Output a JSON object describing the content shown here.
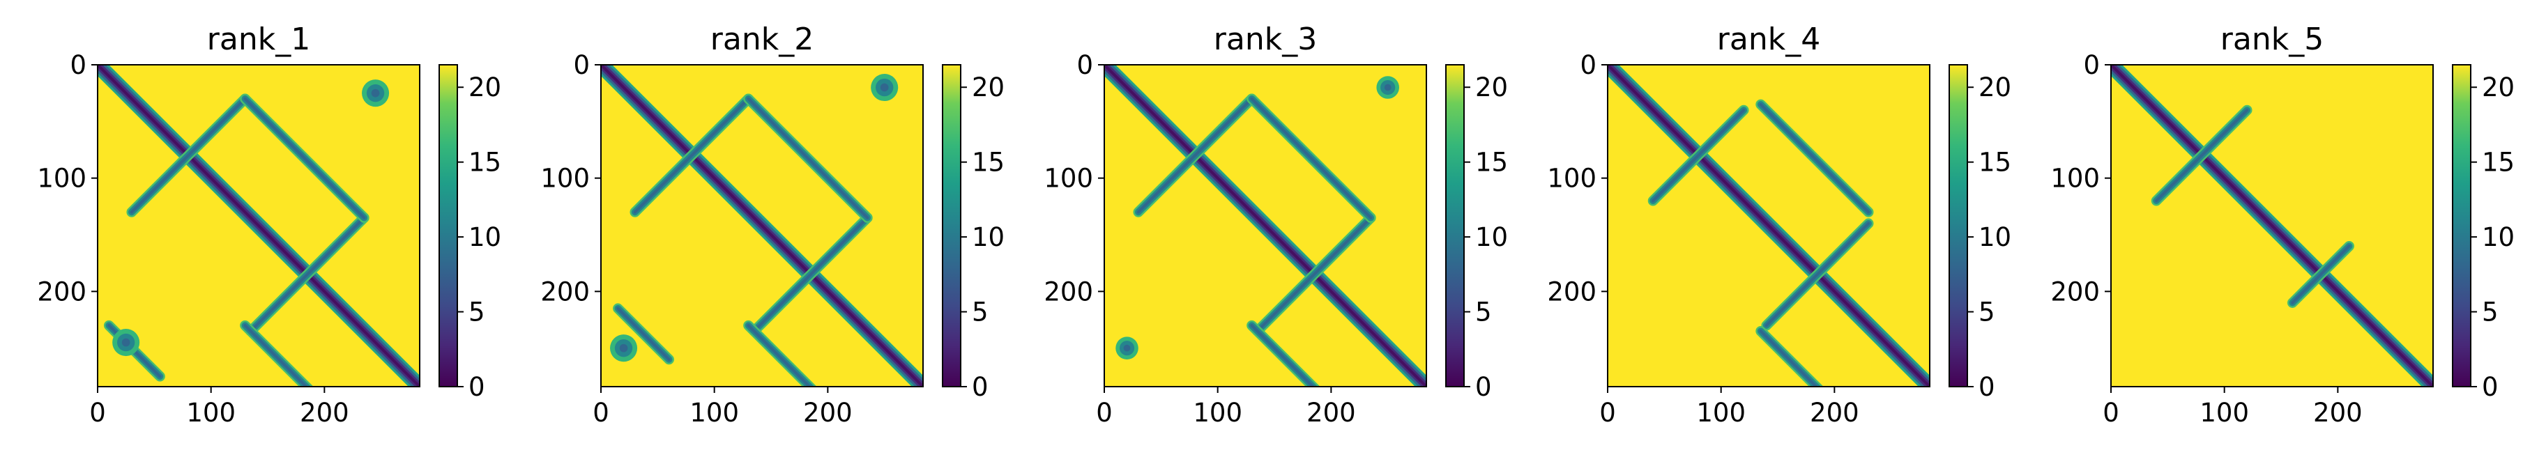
{
  "chart_data": [
    {
      "type": "heatmap",
      "title": "rank_1",
      "xlabel": "",
      "ylabel": "",
      "x_ticks": [
        "0",
        "100",
        "200"
      ],
      "y_ticks": [
        "0",
        "100",
        "200"
      ],
      "xlim": [
        0,
        284
      ],
      "ylim": [
        284,
        0
      ],
      "colorbar": {
        "range": [
          0,
          21.5
        ],
        "ticks": [
          "0",
          "5",
          "10",
          "15",
          "20"
        ],
        "colormap": "viridis"
      },
      "features": [
        {
          "kind": "main_diagonal",
          "from": 0,
          "to": 284
        },
        {
          "kind": "antidiagonal",
          "i_sum": 160,
          "start": 30,
          "end": 130
        },
        {
          "kind": "antidiagonal",
          "i_sum": 370,
          "start": 135,
          "end": 235
        },
        {
          "kind": "offdiagonal",
          "offset": 100,
          "start": 130,
          "end": 235
        },
        {
          "kind": "offdiagonal",
          "offset": -100,
          "start": 130,
          "end": 235
        },
        {
          "kind": "offdiagonal",
          "offset": 220,
          "start": 10,
          "end": 55
        },
        {
          "kind": "offdiagonal",
          "offset": -220,
          "start": 10,
          "end": 55
        },
        {
          "kind": "cluster",
          "x": 245,
          "y": 25,
          "r": 12
        },
        {
          "kind": "cluster",
          "x": 25,
          "y": 245,
          "r": 12
        }
      ]
    },
    {
      "type": "heatmap",
      "title": "rank_2",
      "xlabel": "",
      "ylabel": "",
      "x_ticks": [
        "0",
        "100",
        "200"
      ],
      "y_ticks": [
        "0",
        "100",
        "200"
      ],
      "xlim": [
        0,
        284
      ],
      "ylim": [
        284,
        0
      ],
      "colorbar": {
        "range": [
          0,
          21.5
        ],
        "ticks": [
          "0",
          "5",
          "10",
          "15",
          "20"
        ],
        "colormap": "viridis"
      },
      "features": [
        {
          "kind": "main_diagonal",
          "from": 0,
          "to": 284
        },
        {
          "kind": "antidiagonal",
          "i_sum": 160,
          "start": 30,
          "end": 130
        },
        {
          "kind": "antidiagonal",
          "i_sum": 370,
          "start": 135,
          "end": 235
        },
        {
          "kind": "offdiagonal",
          "offset": 100,
          "start": 130,
          "end": 235
        },
        {
          "kind": "offdiagonal",
          "offset": -100,
          "start": 130,
          "end": 235
        },
        {
          "kind": "offdiagonal",
          "offset": 200,
          "start": 15,
          "end": 60
        },
        {
          "kind": "offdiagonal",
          "offset": -200,
          "start": 15,
          "end": 60
        },
        {
          "kind": "cluster",
          "x": 250,
          "y": 20,
          "r": 12
        },
        {
          "kind": "cluster",
          "x": 20,
          "y": 250,
          "r": 12
        }
      ]
    },
    {
      "type": "heatmap",
      "title": "rank_3",
      "xlabel": "",
      "ylabel": "",
      "x_ticks": [
        "0",
        "100",
        "200"
      ],
      "y_ticks": [
        "0",
        "100",
        "200"
      ],
      "xlim": [
        0,
        284
      ],
      "ylim": [
        284,
        0
      ],
      "colorbar": {
        "range": [
          0,
          21.5
        ],
        "ticks": [
          "0",
          "5",
          "10",
          "15",
          "20"
        ],
        "colormap": "viridis"
      },
      "features": [
        {
          "kind": "main_diagonal",
          "from": 0,
          "to": 284
        },
        {
          "kind": "antidiagonal",
          "i_sum": 160,
          "start": 30,
          "end": 130
        },
        {
          "kind": "antidiagonal",
          "i_sum": 370,
          "start": 135,
          "end": 235
        },
        {
          "kind": "offdiagonal",
          "offset": 100,
          "start": 130,
          "end": 235
        },
        {
          "kind": "offdiagonal",
          "offset": -100,
          "start": 130,
          "end": 235
        },
        {
          "kind": "cluster",
          "x": 250,
          "y": 20,
          "r": 10
        },
        {
          "kind": "cluster",
          "x": 20,
          "y": 250,
          "r": 10
        }
      ]
    },
    {
      "type": "heatmap",
      "title": "rank_4",
      "xlabel": "",
      "ylabel": "",
      "x_ticks": [
        "0",
        "100",
        "200"
      ],
      "y_ticks": [
        "0",
        "100",
        "200"
      ],
      "xlim": [
        0,
        284
      ],
      "ylim": [
        284,
        0
      ],
      "colorbar": {
        "range": [
          0,
          21.5
        ],
        "ticks": [
          "0",
          "5",
          "10",
          "15",
          "20"
        ],
        "colormap": "viridis"
      },
      "features": [
        {
          "kind": "main_diagonal",
          "from": 0,
          "to": 284
        },
        {
          "kind": "antidiagonal",
          "i_sum": 160,
          "start": 40,
          "end": 120
        },
        {
          "kind": "antidiagonal",
          "i_sum": 370,
          "start": 140,
          "end": 230
        },
        {
          "kind": "offdiagonal",
          "offset": 100,
          "start": 135,
          "end": 230
        },
        {
          "kind": "offdiagonal",
          "offset": -100,
          "start": 135,
          "end": 230
        }
      ]
    },
    {
      "type": "heatmap",
      "title": "rank_5",
      "xlabel": "",
      "ylabel": "",
      "x_ticks": [
        "0",
        "100",
        "200"
      ],
      "y_ticks": [
        "0",
        "100",
        "200"
      ],
      "xlim": [
        0,
        284
      ],
      "ylim": [
        284,
        0
      ],
      "colorbar": {
        "range": [
          0,
          21.5
        ],
        "ticks": [
          "0",
          "5",
          "10",
          "15",
          "20"
        ],
        "colormap": "viridis"
      },
      "features": [
        {
          "kind": "main_diagonal",
          "from": 0,
          "to": 284
        },
        {
          "kind": "antidiagonal",
          "i_sum": 160,
          "start": 40,
          "end": 120
        },
        {
          "kind": "antidiagonal",
          "i_sum": 370,
          "start": 160,
          "end": 210
        }
      ]
    }
  ]
}
